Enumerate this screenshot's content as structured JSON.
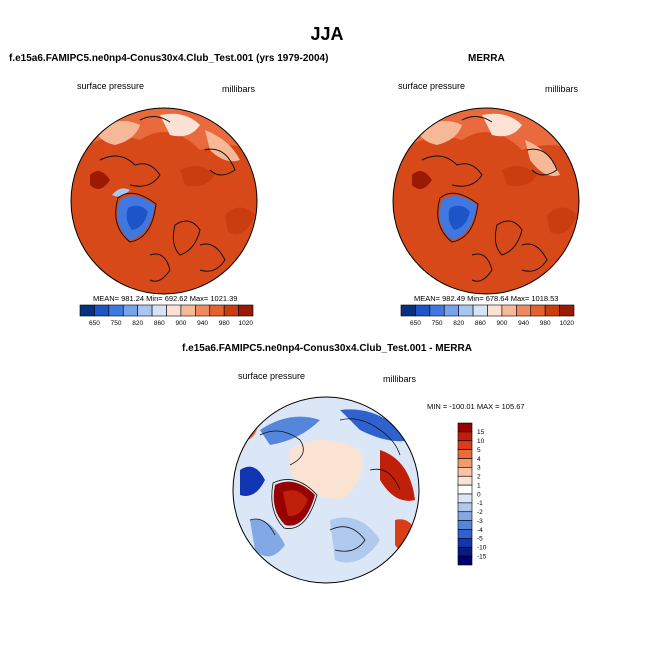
{
  "title": "JJA",
  "panels": {
    "model": {
      "title": "f.e15a6.FAMIPC5.ne0np4-Conus30x4.Club_Test.001 (yrs 1979-2004)",
      "left_label": "surface pressure",
      "right_label": "millibars",
      "stats": "MEAN= 981.24   Min= 692.62   Max= 1021.39"
    },
    "obs": {
      "title": "MERRA",
      "left_label": "surface pressure",
      "right_label": "millibars",
      "stats": "MEAN= 982.49   Min= 678.64   Max= 1018.53"
    },
    "diff": {
      "title": "f.e15a6.FAMIPC5.ne0np4-Conus30x4.Club_Test.001 - MERRA",
      "left_label": "surface pressure",
      "right_label": "millibars",
      "stats": "MIN = -100.01  MAX = 105.67"
    }
  },
  "chart_data": [
    {
      "type": "heatmap",
      "title": "f.e15a6.FAMIPC5.ne0np4-Conus30x4.Club_Test.001 (yrs 1979-2004)",
      "variable": "surface pressure",
      "units": "millibars",
      "projection": "north polar stereographic",
      "stats": {
        "mean": 981.24,
        "min": 692.62,
        "max": 1021.39
      },
      "colorbar": {
        "orientation": "horizontal",
        "levels": [
          "650",
          "750",
          "820",
          "860",
          "900",
          "940",
          "980",
          "1020"
        ]
      }
    },
    {
      "type": "heatmap",
      "title": "MERRA",
      "variable": "surface pressure",
      "units": "millibars",
      "projection": "north polar stereographic",
      "stats": {
        "mean": 982.49,
        "min": 678.64,
        "max": 1018.53
      },
      "colorbar": {
        "orientation": "horizontal",
        "levels": [
          "650",
          "750",
          "820",
          "860",
          "900",
          "940",
          "980",
          "1020"
        ]
      }
    },
    {
      "type": "heatmap",
      "title": "f.e15a6.FAMIPC5.ne0np4-Conus30x4.Club_Test.001 - MERRA",
      "variable": "surface pressure",
      "units": "millibars",
      "projection": "north polar stereographic",
      "stats": {
        "min": -100.01,
        "max": 105.67
      },
      "colorbar": {
        "orientation": "vertical",
        "levels": [
          "15",
          "10",
          "5",
          "4",
          "3",
          "2",
          "1",
          "0",
          "-1",
          "-2",
          "-3",
          "-4",
          "-5",
          "-10",
          "-15"
        ]
      }
    }
  ],
  "colors": {
    "abs_scale": [
      "#08307f",
      "#1d55c9",
      "#3f78e0",
      "#77a3ec",
      "#a9c6f2",
      "#d6e4f7",
      "#fbe2d4",
      "#f6b997",
      "#ef8a5e",
      "#e4622e",
      "#c93d0f",
      "#9b1a03"
    ],
    "diff_scale": [
      "#960000",
      "#c0200a",
      "#db3e17",
      "#ea6a3a",
      "#f39a6c",
      "#f8c3a3",
      "#fbe3d3",
      "#ffffff",
      "#dbe7f7",
      "#afc9ef",
      "#82a8e5",
      "#5586db",
      "#2f62cf",
      "#1036b4",
      "#0a1b7f",
      "#000070"
    ],
    "base_red": "#d8491a",
    "land_outline": "#111111"
  }
}
